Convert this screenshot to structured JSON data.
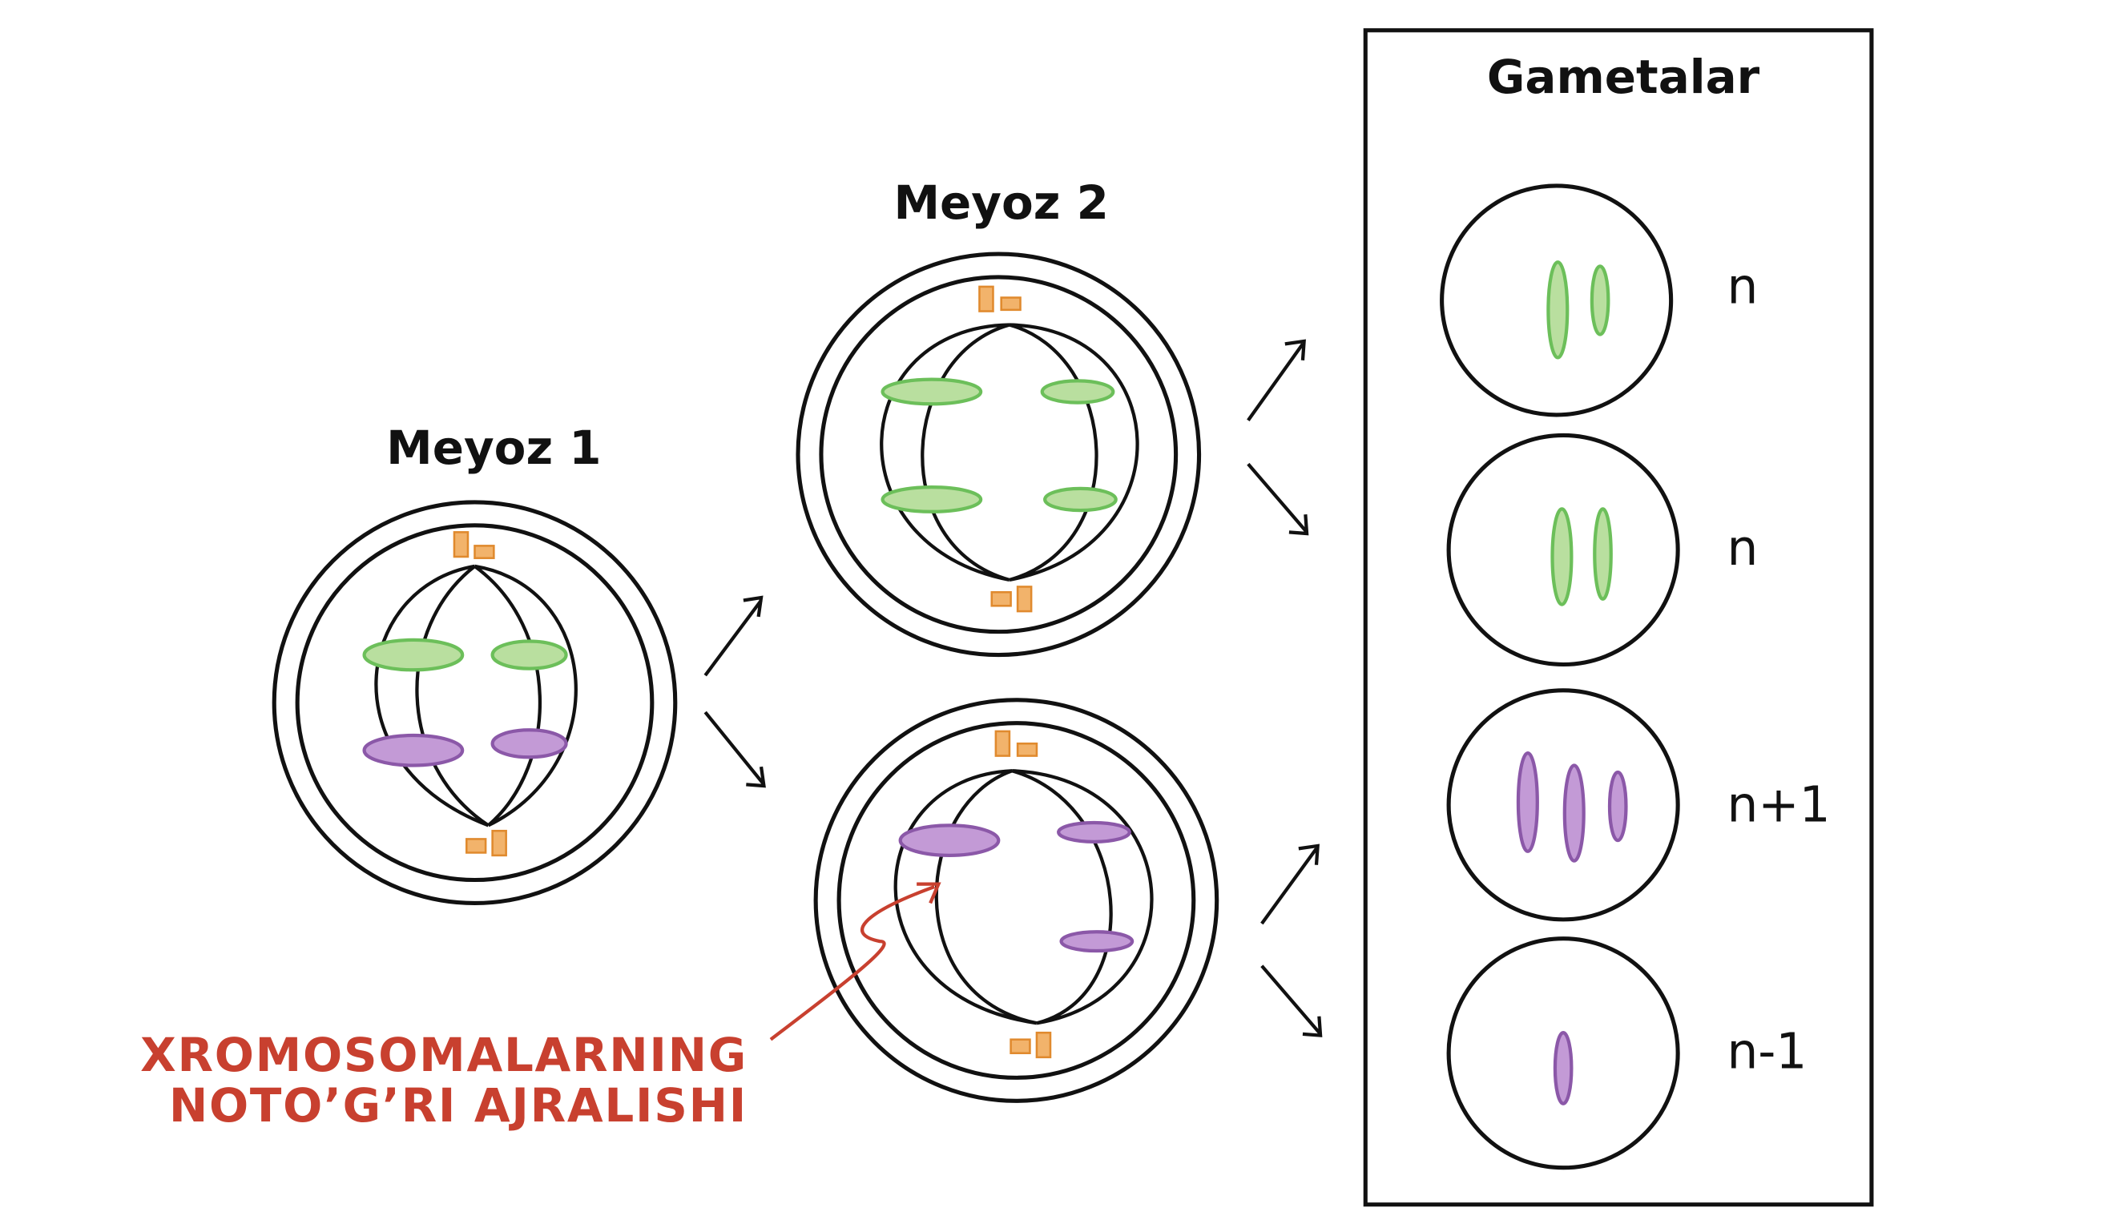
{
  "stages": {
    "meiosis1": "Meyoz 1",
    "meiosis2": "Meyoz 2"
  },
  "gametes": {
    "title": "Gametalar",
    "labels": [
      "n",
      "n",
      "n+1",
      "n-1"
    ]
  },
  "annotation": {
    "lines": [
      "XROMOSOMALARNING",
      "NOTO’G’RI AJRALISHI"
    ]
  }
}
